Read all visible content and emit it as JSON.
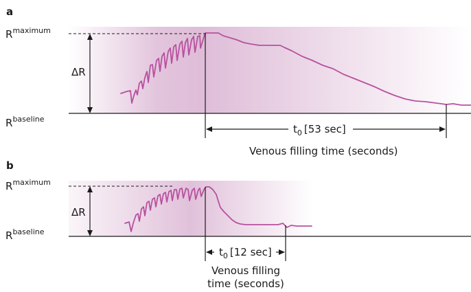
{
  "panel_a": {
    "letter": "a",
    "r_max": {
      "base": "R",
      "sup": "maximum"
    },
    "r_base": {
      "base": "R",
      "sup": "baseline"
    },
    "delta_r": "ΔR",
    "t0_label": {
      "t": "t",
      "sub": "0",
      "value": "[53 sec]"
    },
    "caption": "Venous filling time (seconds)"
  },
  "panel_b": {
    "letter": "b",
    "r_max": {
      "base": "R",
      "sup": "maximum"
    },
    "r_base": {
      "base": "R",
      "sup": "baseline"
    },
    "delta_r": "ΔR",
    "t0_label": {
      "t": "t",
      "sub": "0",
      "value": "[12 sec]"
    },
    "caption_line1": "Venous filling",
    "caption_line2": "time (seconds)"
  },
  "colors": {
    "trace": "#b8509e",
    "shade": "#a03c8c"
  }
}
